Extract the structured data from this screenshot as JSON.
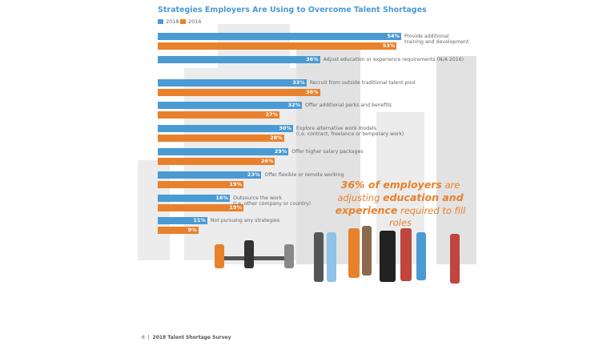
{
  "chart_data": {
    "type": "bar",
    "orientation": "horizontal",
    "title": "Strategies Employers Are Using to Overcome Talent Shortages",
    "legend": [
      "2018",
      "2016"
    ],
    "legend_placement": "top-left",
    "categories": [
      "Provide additional training and development",
      "Adjust education or experience requirements (N/A 2016)",
      "Recruit from outside traditional talent pool",
      "Offer additional perks and benefits",
      "Explore alternative work models (i.e. contract, freelance or temporary work)",
      "Offer higher salary packages",
      "Offer flexible or remote working",
      "Outsource the work (i.e. other company or country)",
      "Not pursuing any strategies"
    ],
    "label_lines": [
      [
        "Provide additional",
        "training and development"
      ],
      [
        "Adjust education or experience requirements (N/A 2016)"
      ],
      [
        "Recruit from outside traditional talent pool"
      ],
      [
        "Offer additional perks and benefits"
      ],
      [
        "Explore alternative work models",
        "(i.e. contract, freelance or temporary work)"
      ],
      [
        "Offer higher salary packages"
      ],
      [
        "Offer flexible or remote working"
      ],
      [
        "Outsource the work",
        "(i.e. other company or country)"
      ],
      [
        "Not pursuing any strategies"
      ]
    ],
    "series": [
      {
        "name": "2018",
        "color": "#4a9ad4",
        "values": [
          54,
          36,
          33,
          32,
          30,
          29,
          23,
          16,
          11
        ]
      },
      {
        "name": "2016",
        "color": "#e8812c",
        "values": [
          53,
          null,
          36,
          27,
          28,
          26,
          19,
          19,
          9
        ]
      }
    ],
    "unit": "%"
  },
  "callout": {
    "p1": "36% of employers",
    "p2": " are adjusting ",
    "p3": "education and experience",
    "p4": " required to fill roles"
  },
  "footer": {
    "page": "6",
    "sep": "|",
    "text": "2018 Talent Shortage Survey"
  }
}
